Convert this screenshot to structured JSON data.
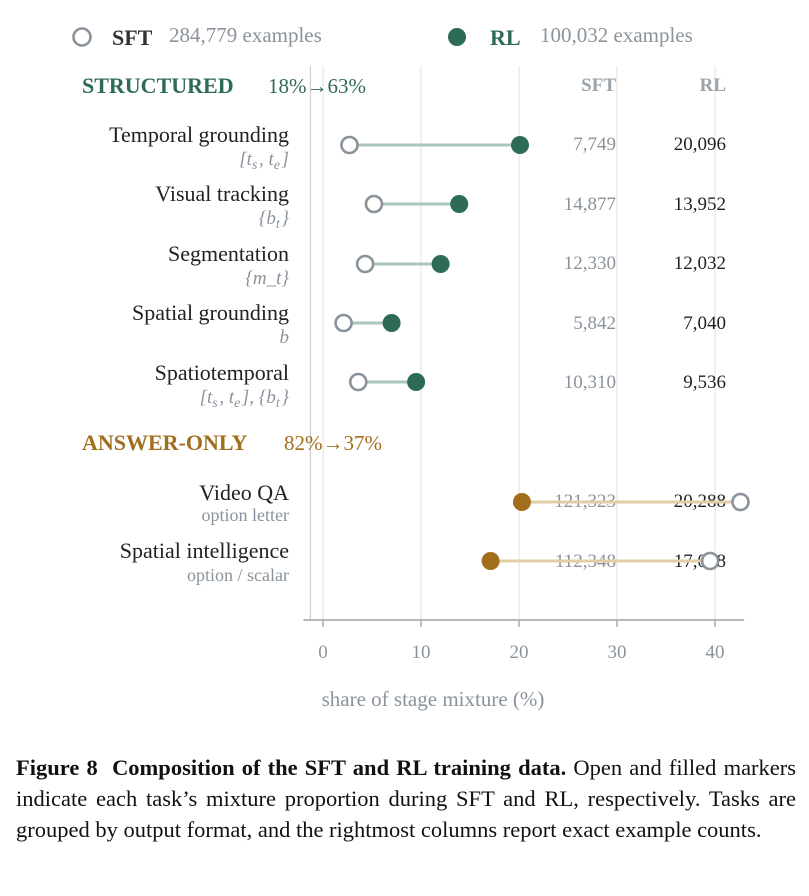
{
  "legend": {
    "sft": {
      "label": "SFT",
      "count": "284,779 examples"
    },
    "rl": {
      "label": "RL",
      "count": "100,032 examples"
    }
  },
  "columns": {
    "sft": "SFT",
    "rl": "RL"
  },
  "colors": {
    "structured": "#2e6b54",
    "structured_line": "#a9c6ba",
    "answer": "#a16e1c",
    "answer_line": "#e3cca6",
    "sft_marker": "#8a939b",
    "grid": "#e6e6e6",
    "axis_text": "#8a939b",
    "label_text": "#222222",
    "sub_text": "#8a939b"
  },
  "chart_data": {
    "type": "dumbbell",
    "xlabel": "share of stage mixture (%)",
    "xlim": [
      -2,
      44
    ],
    "xticks": [
      0,
      10,
      20,
      30,
      40
    ],
    "grid": true,
    "legend_position": "top",
    "series": [
      {
        "name": "SFT",
        "marker": "open"
      },
      {
        "name": "RL",
        "marker": "filled"
      }
    ],
    "groups": [
      {
        "name": "STRUCTURED",
        "shift": "18%→63%",
        "tasks": [
          {
            "label": "Temporal grounding",
            "format": "[t_s, t_e]",
            "sft_share": 2.7,
            "rl_share": 20.1,
            "sft_count": "7,749",
            "rl_count": "20,096"
          },
          {
            "label": "Visual tracking",
            "format": "{b_t}",
            "sft_share": 5.2,
            "rl_share": 13.9,
            "sft_count": "14,877",
            "rl_count": "13,952"
          },
          {
            "label": "Segmentation",
            "format": "{m_t}",
            "sft_share": 4.3,
            "rl_share": 12.0,
            "sft_count": "12,330",
            "rl_count": "12,032"
          },
          {
            "label": "Spatial grounding",
            "format": "b",
            "sft_share": 2.1,
            "rl_share": 7.0,
            "sft_count": "5,842",
            "rl_count": "7,040"
          },
          {
            "label": "Spatiotemporal",
            "format": "[t_s, t_e], {b_t}",
            "sft_share": 3.6,
            "rl_share": 9.5,
            "sft_count": "10,310",
            "rl_count": "9,536"
          }
        ]
      },
      {
        "name": "ANSWER-ONLY",
        "shift": "82%→37%",
        "tasks": [
          {
            "label": "Video QA",
            "format": "option letter",
            "sft_share": 42.6,
            "rl_share": 20.3,
            "sft_count": "121,323",
            "rl_count": "20,288"
          },
          {
            "label": "Spatial intelligence",
            "format": "option / scalar",
            "sft_share": 39.5,
            "rl_share": 17.1,
            "sft_count": "112,348",
            "rl_count": "17,088"
          }
        ]
      }
    ]
  },
  "caption": {
    "label": "Figure 8",
    "title": "Composition of the SFT and RL training data.",
    "body": "Open and filled markers indicate each task’s mixture proportion during SFT and RL, respectively. Tasks are grouped by output format, and the rightmost columns report exact example counts."
  }
}
